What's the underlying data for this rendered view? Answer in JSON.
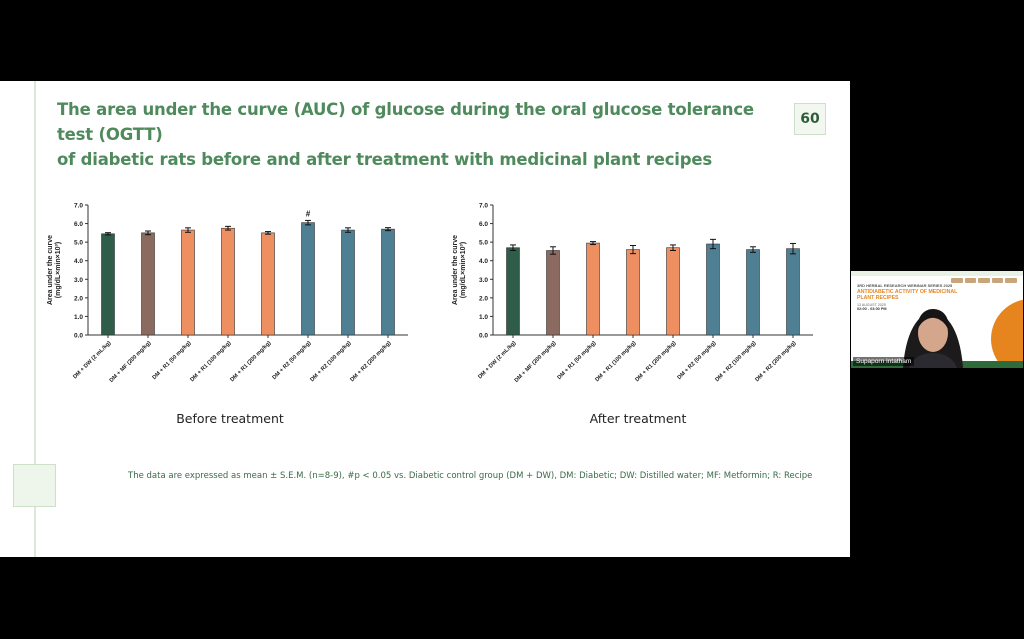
{
  "slide": {
    "title": "The area under the curve (AUC) of glucose during the oral glucose tolerance test (OGTT)\nof diabetic rats before and after treatment with medicinal plant recipes",
    "page_number": "60",
    "footnote": "The data are expressed as mean ± S.E.M. (n=8-9), #p < 0.05 vs. Diabetic control group (DM + DW), DM: Diabetic; DW: Distilled water; MF: Metformin; R: Recipe"
  },
  "chart_data": [
    {
      "type": "bar",
      "title": "",
      "caption": "Before treatment",
      "ylabel": "Area under the curve\n(mg/dL×min×10³)",
      "ylabel_lines": [
        "Area under the curve",
        "(mg/dL×min×10³)"
      ],
      "ylim": [
        0,
        7
      ],
      "yticks": [
        "0.0",
        "1.0",
        "2.0",
        "3.0",
        "4.0",
        "5.0",
        "6.0",
        "7.0"
      ],
      "categories": [
        "DM + DW (2 mL/kg)",
        "DM + MF (200 mg/kg)",
        "DM + R1 (50 mg/kg)",
        "DM + R1 (100 mg/kg)",
        "DM + R1 (200 mg/kg)",
        "DM + R2 (50 mg/kg)",
        "DM + R2 (100 mg/kg)",
        "DM + R2 (200 mg/kg)"
      ],
      "values": [
        5.45,
        5.5,
        5.65,
        5.75,
        5.5,
        6.05,
        5.65,
        5.7
      ],
      "errors": [
        0.06,
        0.1,
        0.12,
        0.1,
        0.07,
        0.12,
        0.12,
        0.08
      ],
      "annotations": [
        "",
        "",
        "",
        "",
        "",
        "#",
        "",
        ""
      ],
      "colors": [
        "#2f5d4a",
        "#8b6a60",
        "#ee8f62",
        "#ee8f62",
        "#ee8f62",
        "#4e7f93",
        "#4e7f93",
        "#4e7f93"
      ]
    },
    {
      "type": "bar",
      "title": "",
      "caption": "After treatment",
      "ylabel": "Area under the curve\n(mg/dL×min×10³)",
      "ylabel_lines": [
        "Area under the curve",
        "(mg/dL×min×10³)"
      ],
      "ylim": [
        0,
        7
      ],
      "yticks": [
        "0.0",
        "1.0",
        "2.0",
        "3.0",
        "4.0",
        "5.0",
        "6.0",
        "7.0"
      ],
      "categories": [
        "DM + DW (2 mL/kg)",
        "DM + MF (200 mg/kg)",
        "DM + R1 (50 mg/kg)",
        "DM + R1 (100 mg/kg)",
        "DM + R1 (200 mg/kg)",
        "DM + R2 (50 mg/kg)",
        "DM + R2 (100 mg/kg)",
        "DM + R2 (200 mg/kg)"
      ],
      "values": [
        4.7,
        4.55,
        4.95,
        4.6,
        4.7,
        4.9,
        4.6,
        4.65
      ],
      "errors": [
        0.15,
        0.2,
        0.08,
        0.22,
        0.15,
        0.25,
        0.15,
        0.28
      ],
      "annotations": [
        "",
        "",
        "",
        "",
        "",
        "",
        "",
        ""
      ],
      "colors": [
        "#2f5d4a",
        "#8b6a60",
        "#ee8f62",
        "#ee8f62",
        "#ee8f62",
        "#4e7f93",
        "#4e7f93",
        "#4e7f93"
      ]
    }
  ],
  "video": {
    "participant_name": "Supaporn Intatham",
    "slide_series": "3RD HERBAL RESEARCH WEBINAR SERIES 2025",
    "slide_title": "ANTIDIABETIC ACTIVITY OF MEDICINAL PLANT RECIPES",
    "slide_date": "13 AUGUST 2025",
    "slide_time": "02:00 - 03:00 PM"
  }
}
